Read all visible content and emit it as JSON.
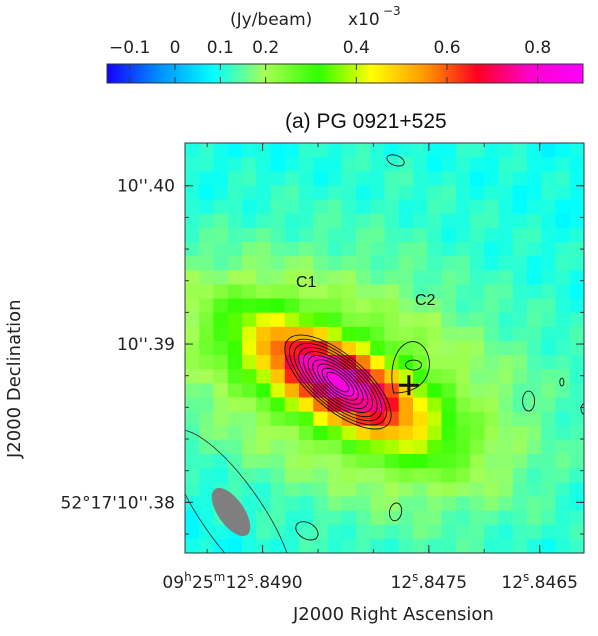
{
  "chart_data": {
    "type": "heatmap",
    "title": "(a) PG 0921+525",
    "colorbar": {
      "unit_label": "(Jy/beam)",
      "scale_label": "x10",
      "scale_exp": "−3",
      "ticks": [
        "−0.1",
        "0",
        "0.1",
        "0.2",
        "0.4",
        "0.6",
        "0.8"
      ],
      "tick_values": [
        -0.1,
        0.0,
        0.1,
        0.2,
        0.4,
        0.6,
        0.8
      ],
      "range": [
        -0.15,
        0.9
      ],
      "colors": [
        "#1500ff",
        "#0090ff",
        "#00ffff",
        "#a6ff55",
        "#30ff00",
        "#ffff00",
        "#ff9900",
        "#ff0022",
        "#ff00cc",
        "#ff00ff"
      ]
    },
    "xlabel": "J2000 Right Ascension",
    "ylabel": "J2000 Declination",
    "xticks": [
      {
        "value": 12.849,
        "h": "09",
        "m": "25",
        "s": "12",
        "frac": ".8490"
      },
      {
        "value": 12.8475,
        "h": "",
        "m": "",
        "s": "12",
        "frac": ".8475"
      },
      {
        "value": 12.8465,
        "h": "",
        "m": "",
        "s": "12",
        "frac": ".8465"
      }
    ],
    "yticks": [
      {
        "value": 10.4,
        "label": "10''.40"
      },
      {
        "value": 10.39,
        "label": "10''.39"
      },
      {
        "value": 10.38,
        "label": "52°17'10''.38"
      }
    ],
    "xlim": [
      12.8497,
      12.8461
    ],
    "ylim": [
      10.3768,
      10.4027
    ],
    "components": [
      {
        "name": "C1",
        "ra": 12.84832,
        "dec": 10.3876,
        "peak": 0.86
      },
      {
        "name": "C2",
        "ra": 12.84762,
        "dec": 10.3888,
        "peak": 0.0
      }
    ],
    "position_marker": {
      "ra": 12.84768,
      "dec": 10.3874
    },
    "beam": {
      "major": 0.0045,
      "minor": 0.0019,
      "pa_deg": 35
    },
    "background": 0.13,
    "colors": {
      "contour": "#111111",
      "beam_fill": "#7f7f7f",
      "frame": "#333333"
    }
  }
}
